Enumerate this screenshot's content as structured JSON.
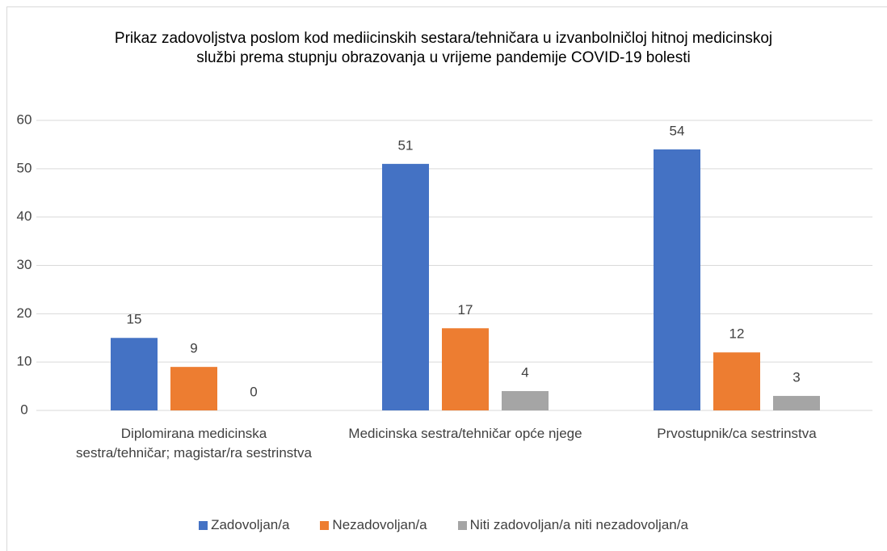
{
  "chart_data": {
    "type": "bar",
    "title": "Prikaz zadovoljstva poslom kod mediicinskih sestara/tehničara u izvanbolničloj hitnoj medicinskoj službi prema stupnju obrazovanja u vrijeme pandemije COVID-19 bolesti",
    "categories": [
      "Diplomirana medicinska sestra/tehničar; magistar/ra sestrinstva",
      "Medicinska sestra/tehničar opće njege",
      "Prvostupnik/ca sestrinstva"
    ],
    "series": [
      {
        "name": "Zadovoljan/a",
        "color": "#4472c4",
        "values": [
          15,
          51,
          54
        ]
      },
      {
        "name": "Nezadovoljan/a",
        "color": "#ed7d31",
        "values": [
          9,
          17,
          12
        ]
      },
      {
        "name": "Niti zadovoljan/a niti nezadovoljan/a",
        "color": "#a5a5a5",
        "values": [
          0,
          4,
          3
        ]
      }
    ],
    "ylim": [
      0,
      60
    ],
    "yticks": [
      0,
      10,
      20,
      30,
      40,
      50,
      60
    ],
    "grid": true,
    "legend": "bottom"
  }
}
